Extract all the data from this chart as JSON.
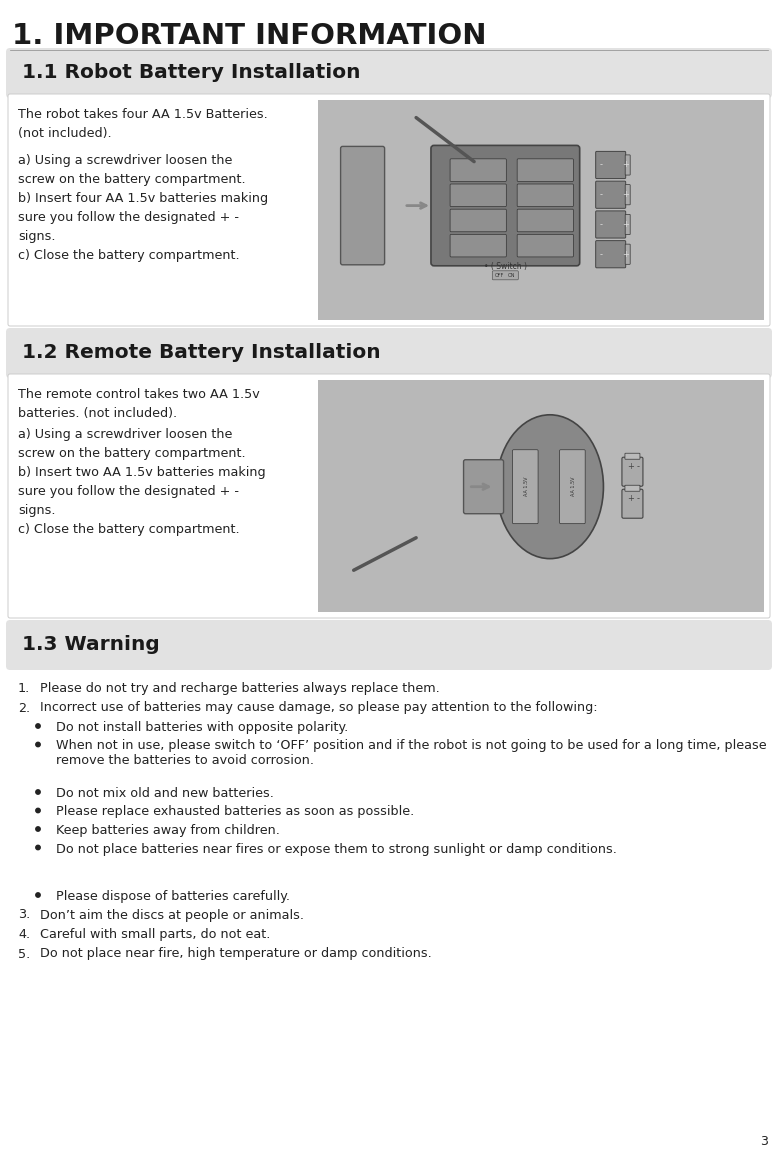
{
  "title": "1. IMPORTANT INFORMATION",
  "section1_header": "1.1 Robot Battery Installation",
  "section2_header": "1.2 Remote Battery Installation",
  "section3_header": "1.3 Warning",
  "section1_text1": "The robot takes four AA 1.5v Batteries.\n(not included).",
  "section1_text2": "a) Using a screwdriver loosen the\nscrew on the battery compartment.\nb) Insert four AA 1.5v batteries making\nsure you follow the designated + -\nsigns.\nc) Close the battery compartment.",
  "section2_text1": "The remote control takes two AA 1.5v\nbatteries. (not included).",
  "section2_text2": "a) Using a screwdriver loosen the\nscrew on the battery compartment.\nb) Insert two AA 1.5v batteries making\nsure you follow the designated + -\nsigns.\nc) Close the battery compartment.",
  "warning_items": [
    {
      "type": "numbered",
      "num": "1.",
      "text": "Please do not try and recharge batteries always replace them."
    },
    {
      "type": "numbered",
      "num": "2.",
      "text": "Incorrect use of batteries may cause damage, so please pay attention to the following:"
    },
    {
      "type": "bullet",
      "text": "Do not install batteries with opposite polarity."
    },
    {
      "type": "bullet2",
      "text": "When not in use, please switch to ‘OFF’ position and if the robot is not going to be used for a long time, please remove the batteries to avoid corrosion."
    },
    {
      "type": "bullet",
      "text": "Do not mix old and new batteries."
    },
    {
      "type": "bullet",
      "text": "Please replace exhausted batteries as soon as possible."
    },
    {
      "type": "bullet",
      "text": "Keep batteries away from children."
    },
    {
      "type": "bullet2",
      "text": "Do not place batteries near fires or expose them to strong sunlight or damp conditions."
    },
    {
      "type": "bullet",
      "text": "Please dispose of batteries carefully."
    },
    {
      "type": "numbered",
      "num": "3.",
      "text": "Don’t aim the discs at people or animals."
    },
    {
      "type": "numbered",
      "num": "4.",
      "text": "Careful with small parts, do not eat."
    },
    {
      "type": "numbered",
      "num": "5.",
      "text": "Do not place near fire, high temperature or damp conditions."
    }
  ],
  "page_number": "3",
  "bg_color": "#ffffff",
  "section_bg_color": "#e2e2e2",
  "title_color": "#1a1a1a",
  "text_color": "#222222",
  "header_color": "#1a1a1a",
  "img_bg_color": "#c8c8c8",
  "body_area_color": "#ffffff",
  "body_border_color": "#cccccc"
}
